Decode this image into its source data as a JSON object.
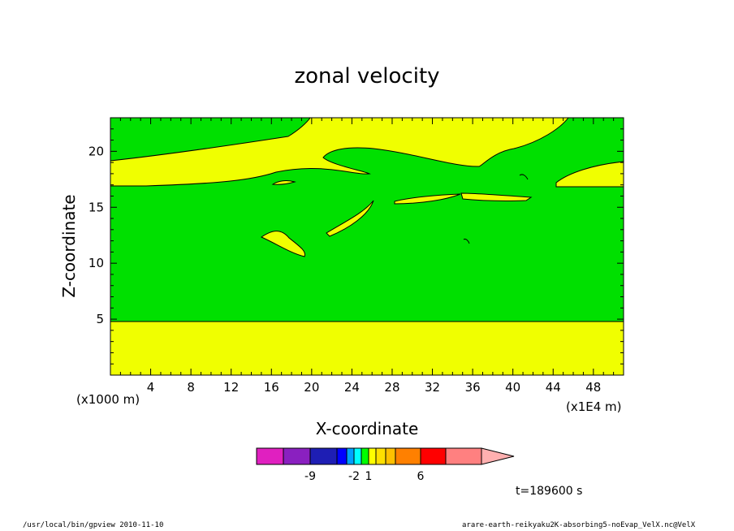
{
  "chart_data": {
    "type": "contour",
    "title": "zonal velocity",
    "xlabel": "X-coordinate",
    "ylabel": "Z-coordinate",
    "x_unit": "(x1E4 m)",
    "y_unit": "(x1000 m)",
    "xlim": [
      0,
      51
    ],
    "ylim": [
      0,
      23
    ],
    "x_ticks": [
      "4",
      "8",
      "12",
      "16",
      "20",
      "24",
      "28",
      "32",
      "36",
      "40",
      "44",
      "48"
    ],
    "y_ticks": [
      "5",
      "10",
      "15",
      "20"
    ],
    "colorbar": {
      "colors": [
        "#e020c0",
        "#8a20c0",
        "#1e1eb4",
        "#0000ff",
        "#00a0ff",
        "#00ffff",
        "#00ff00",
        "#ffff00",
        "#ffe000",
        "#ffc000",
        "#ff8000",
        "#ff0000",
        "#ff8080",
        "#ffb0b0"
      ],
      "labels": [
        "-9",
        "-2",
        "1",
        "6"
      ]
    },
    "regions": [
      {
        "color": "#f0ff00",
        "value_range": "0 to 1",
        "description": "yellow band at bottom, z 0 to about 4.8"
      },
      {
        "color": "#00e000",
        "value_range": "-1 to 0",
        "description": "green interior, z about 4.8 to 17"
      },
      {
        "color": "#f0ff00",
        "value_range": "0 to 1",
        "description": "yellow upper band, z about 17 to 22"
      }
    ],
    "time_label": "t=189600 s"
  },
  "footer": {
    "left": "/usr/local/bin/gpview  2010-11-10",
    "right": "arare-earth-reikyaku2K-absorbing5-noEvap_VelX.nc@VelX"
  }
}
